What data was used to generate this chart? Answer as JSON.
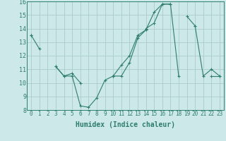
{
  "xlabel": "Humidex (Indice chaleur)",
  "x": [
    0,
    1,
    2,
    3,
    4,
    5,
    6,
    7,
    8,
    9,
    10,
    11,
    12,
    13,
    14,
    15,
    16,
    17,
    18,
    19,
    20,
    21,
    22,
    23
  ],
  "line1": [
    13.5,
    12.5,
    null,
    11.2,
    10.5,
    10.7,
    10.0,
    null,
    null,
    null,
    10.5,
    10.5,
    11.5,
    13.3,
    13.9,
    15.2,
    15.8,
    15.8,
    null,
    14.9,
    14.2,
    null,
    10.5,
    10.5
  ],
  "line2": [
    13.5,
    null,
    null,
    11.2,
    10.5,
    10.5,
    8.3,
    8.2,
    8.9,
    10.2,
    10.5,
    11.3,
    12.0,
    13.5,
    13.9,
    null,
    null,
    null,
    null,
    null,
    null,
    null,
    null,
    null
  ],
  "line3": [
    null,
    null,
    null,
    null,
    null,
    null,
    null,
    null,
    null,
    null,
    10.5,
    null,
    null,
    null,
    14.0,
    14.4,
    15.8,
    15.8,
    10.5,
    null,
    14.2,
    10.5,
    11.0,
    10.5
  ],
  "color": "#2e7d6e",
  "bg_color": "#cce8e8",
  "grid_color": "#aacccc",
  "ylim": [
    8,
    16
  ],
  "xlim": [
    -0.5,
    23.5
  ],
  "yticks": [
    8,
    9,
    10,
    11,
    12,
    13,
    14,
    15,
    16
  ],
  "xticks": [
    0,
    1,
    2,
    3,
    4,
    5,
    6,
    7,
    8,
    9,
    10,
    11,
    12,
    13,
    14,
    15,
    16,
    17,
    18,
    19,
    20,
    21,
    22,
    23
  ],
  "xlabel_fontsize": 7,
  "tick_fontsize": 5.5
}
